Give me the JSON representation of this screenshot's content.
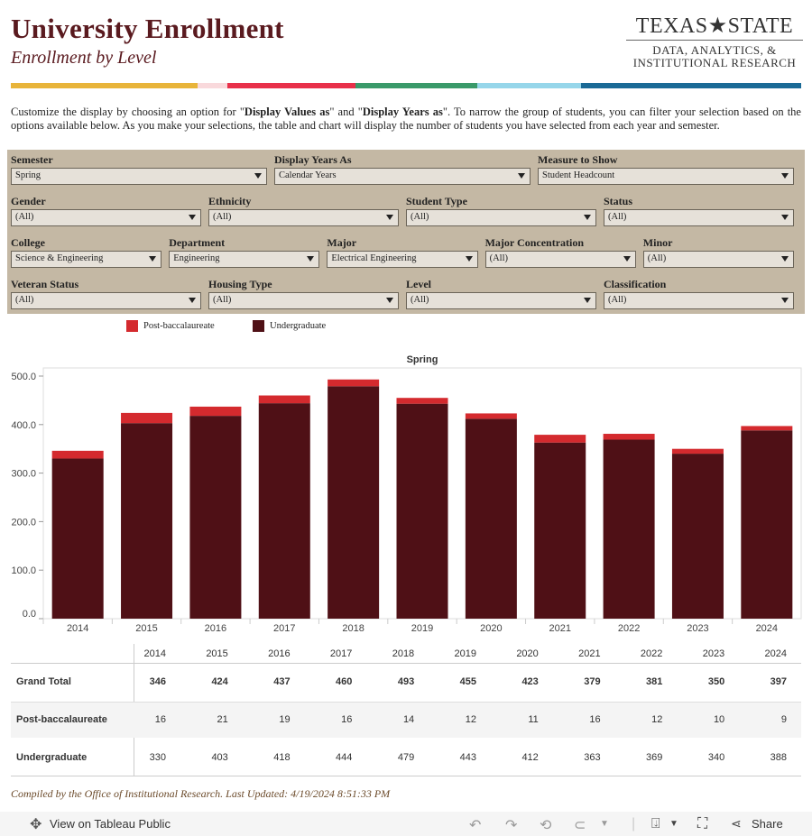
{
  "header": {
    "title": "University Enrollment",
    "subtitle": "Enrollment by Level",
    "logo_top": "TEXAS★STATE",
    "logo_line2": "DATA, ANALYTICS, &",
    "logo_line3": "INSTITUTIONAL RESEARCH"
  },
  "stripe_colors": [
    "#e8b43a",
    "#f9d9dc",
    "#e8304a",
    "#3a9a6a",
    "#96d6ea",
    "#1a6a96"
  ],
  "intro": {
    "p1": "Customize the display by choosing an option for \"",
    "b1": "Display Values as",
    "p2": "\" and \"",
    "b2": "Display Years as",
    "p3": "\". To narrow the group of students, you can filter your selection based on the options available below. As you make your selections, the table and chart will display the number of students you have selected from each year and semester."
  },
  "filters": [
    {
      "label": "Semester",
      "value": "Spring"
    },
    {
      "label": "Display Years As",
      "value": "Calendar Years"
    },
    {
      "label": "Measure to Show",
      "value": "Student Headcount"
    },
    {
      "label": "Gender",
      "value": "(All)"
    },
    {
      "label": "Ethnicity",
      "value": "(All)"
    },
    {
      "label": "Student Type",
      "value": "(All)"
    },
    {
      "label": "Status",
      "value": "(All)"
    },
    {
      "label": "College",
      "value": "Science & Engineering"
    },
    {
      "label": "Department",
      "value": "Engineering"
    },
    {
      "label": "Major",
      "value": "Electrical Engineering"
    },
    {
      "label": "Major Concentration",
      "value": "(All)"
    },
    {
      "label": "Minor",
      "value": "(All)"
    },
    {
      "label": "Veteran Status",
      "value": "(All)"
    },
    {
      "label": "Housing Type",
      "value": "(All)"
    },
    {
      "label": "Level",
      "value": "(All)"
    },
    {
      "label": "Classification",
      "value": "(All)"
    }
  ],
  "chart_data": {
    "type": "bar",
    "stacked": true,
    "title": "Spring",
    "categories": [
      "2014",
      "2015",
      "2016",
      "2017",
      "2018",
      "2019",
      "2020",
      "2021",
      "2022",
      "2023",
      "2024"
    ],
    "series": [
      {
        "name": "Undergraduate",
        "color": "#4f1016",
        "values": [
          330,
          403,
          418,
          444,
          479,
          443,
          412,
          363,
          369,
          340,
          388
        ]
      },
      {
        "name": "Post-baccalaureate",
        "color": "#d42a2e",
        "values": [
          16,
          21,
          19,
          16,
          14,
          12,
          11,
          16,
          12,
          10,
          9
        ]
      }
    ],
    "yticks": [
      "0.0",
      "100.0",
      "200.0",
      "300.0",
      "400.0",
      "500.0"
    ],
    "ylim": [
      0,
      510
    ],
    "legend": "top-left"
  },
  "table": {
    "years": [
      "2014",
      "2015",
      "2016",
      "2017",
      "2018",
      "2019",
      "2020",
      "2021",
      "2022",
      "2023",
      "2024"
    ],
    "rows": [
      {
        "label": "Grand Total",
        "values": [
          "346",
          "424",
          "437",
          "460",
          "493",
          "455",
          "423",
          "379",
          "381",
          "350",
          "397"
        ]
      },
      {
        "label": "Post-baccalaureate",
        "values": [
          "16",
          "21",
          "19",
          "16",
          "14",
          "12",
          "11",
          "16",
          "12",
          "10",
          "9"
        ]
      },
      {
        "label": "Undergraduate",
        "values": [
          "330",
          "403",
          "418",
          "444",
          "479",
          "443",
          "412",
          "363",
          "369",
          "340",
          "388"
        ]
      }
    ]
  },
  "footer": "Compiled by the Office of Institutional Research. Last Updated: 4/19/2024 8:51:33 PM",
  "toolbar": {
    "view_label": "View on Tableau Public",
    "share_label": "Share"
  }
}
